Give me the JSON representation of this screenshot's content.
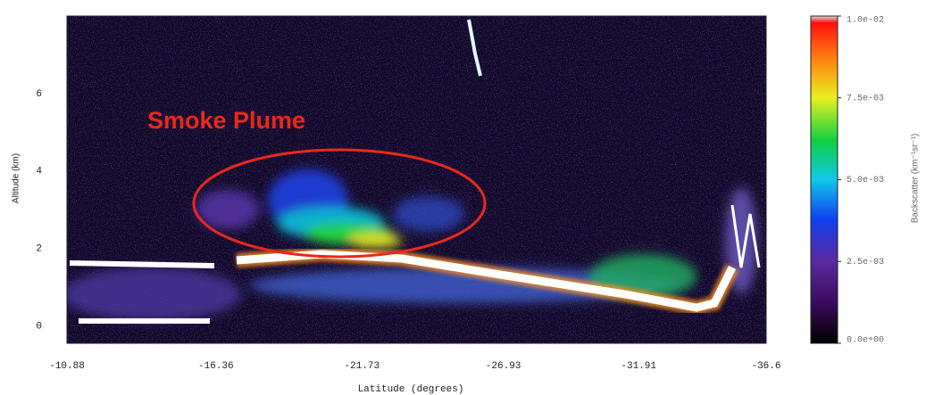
{
  "chart_data": {
    "type": "heatmap",
    "x_label": "Latitude (degrees)",
    "y_label": "Altitude (km)",
    "xlim": [
      -10.88,
      -36.6
    ],
    "xticks": [
      -10.88,
      -16.36,
      -21.73,
      -26.93,
      -31.91,
      -36.6
    ],
    "ylim": [
      -0.45,
      8
    ],
    "yticks": [
      0,
      2,
      4,
      6
    ],
    "colorbar": {
      "label": "Backscatter (km⁻¹sr⁻¹)",
      "lim": [
        0,
        0.01
      ],
      "ticks": [
        {
          "value": 0,
          "label": "0.0e+00"
        },
        {
          "value": 0.0025,
          "label": "2.5e-03"
        },
        {
          "value": 0.005,
          "label": "5.0e-03"
        },
        {
          "value": 0.0075,
          "label": "7.5e-03"
        },
        {
          "value": 0.01,
          "label": "1.0e-02"
        }
      ]
    },
    "annotation": "Smoke Plume"
  }
}
